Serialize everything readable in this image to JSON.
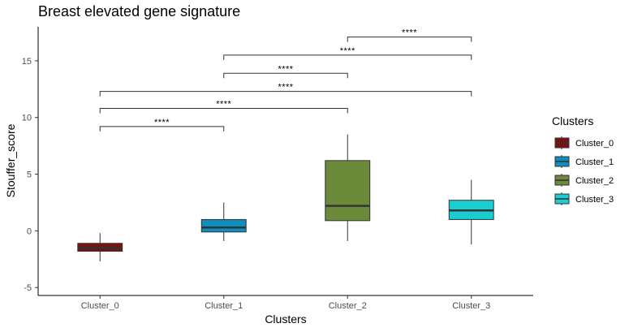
{
  "chart_data": {
    "type": "box",
    "title": "Breast elevated gene signature",
    "xlabel": "Clusters",
    "ylabel": "Stouffer_score",
    "ylim": [
      -5.7,
      18
    ],
    "yticks": [
      -5,
      0,
      5,
      10,
      15
    ],
    "grid": false,
    "categories": [
      "Cluster_0",
      "Cluster_1",
      "Cluster_2",
      "Cluster_3"
    ],
    "boxes": [
      {
        "name": "Cluster_0",
        "min": -2.7,
        "q1": -1.8,
        "median": -1.5,
        "q3": -1.1,
        "max": -0.2,
        "color": "#7b1010"
      },
      {
        "name": "Cluster_1",
        "min": -0.9,
        "q1": -0.1,
        "median": 0.3,
        "q3": 1.0,
        "max": 2.5,
        "color": "#0e8fc0"
      },
      {
        "name": "Cluster_2",
        "min": -0.9,
        "q1": 0.9,
        "median": 2.2,
        "q3": 6.2,
        "max": 8.5,
        "color": "#6b8a3a"
      },
      {
        "name": "Cluster_3",
        "min": -1.2,
        "q1": 1.0,
        "median": 1.8,
        "q3": 2.7,
        "max": 4.5,
        "color": "#19cdd0"
      }
    ],
    "comparisons": [
      {
        "from": "Cluster_0",
        "to": "Cluster_1",
        "y": 9.2,
        "label": "****"
      },
      {
        "from": "Cluster_0",
        "to": "Cluster_2",
        "y": 10.8,
        "label": "****"
      },
      {
        "from": "Cluster_0",
        "to": "Cluster_3",
        "y": 12.3,
        "label": "****"
      },
      {
        "from": "Cluster_1",
        "to": "Cluster_2",
        "y": 13.9,
        "label": "****"
      },
      {
        "from": "Cluster_1",
        "to": "Cluster_3",
        "y": 15.5,
        "label": "****"
      },
      {
        "from": "Cluster_2",
        "to": "Cluster_3",
        "y": 17.1,
        "label": "****"
      }
    ],
    "legend": {
      "title": "Clusters",
      "position": "right",
      "items": [
        {
          "label": "Cluster_0",
          "color": "#7b1010"
        },
        {
          "label": "Cluster_1",
          "color": "#0e8fc0"
        },
        {
          "label": "Cluster_2",
          "color": "#6b8a3a"
        },
        {
          "label": "Cluster_3",
          "color": "#19cdd0"
        }
      ]
    }
  }
}
